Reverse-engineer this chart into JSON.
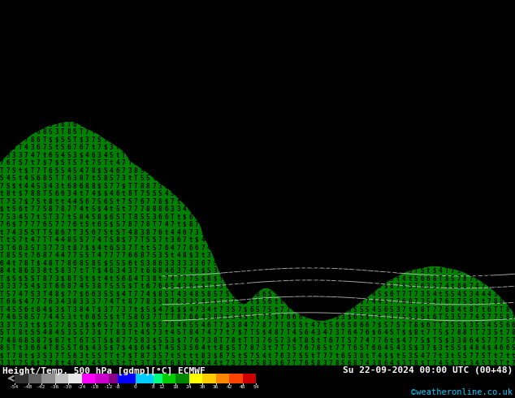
{
  "title_left": "Height/Temp. 500 hPa [gdmp][°C] ECMWF",
  "title_right": "Su 22-09-2024 00:00 UTC (00+48)",
  "credit": "©weatheronline.co.uk",
  "colorbar_ticks": [
    -54,
    -48,
    -42,
    -36,
    -30,
    -24,
    -18,
    -12,
    -8,
    0,
    8,
    12,
    18,
    24,
    30,
    36,
    42,
    48,
    54
  ],
  "colorbar_tick_labels": [
    "-54",
    "-48",
    "-42",
    "-36",
    "-30",
    "-24",
    "-18",
    "-12",
    "-8",
    "0",
    "8",
    "12",
    "18",
    "24",
    "30",
    "36",
    "42",
    "48",
    "54"
  ],
  "color_stops": [
    [
      -54,
      "#303030"
    ],
    [
      -48,
      "#606060"
    ],
    [
      -42,
      "#909090"
    ],
    [
      -36,
      "#c0c0c0"
    ],
    [
      -30,
      "#e8e8e8"
    ],
    [
      -24,
      "#ff00ff"
    ],
    [
      -18,
      "#cc00cc"
    ],
    [
      -12,
      "#880088"
    ],
    [
      -8,
      "#0000ff"
    ],
    [
      0,
      "#00ccff"
    ],
    [
      8,
      "#00ff80"
    ],
    [
      12,
      "#00cc00"
    ],
    [
      18,
      "#008800"
    ],
    [
      24,
      "#ffff00"
    ],
    [
      30,
      "#ffcc00"
    ],
    [
      36,
      "#ff8800"
    ],
    [
      42,
      "#ff4400"
    ],
    [
      48,
      "#cc0000"
    ],
    [
      54,
      "#880000"
    ]
  ],
  "bg_color": "#000000",
  "map_bg_cyan": "#00ffff",
  "land_green": "#008000",
  "text_color": "#ffffff",
  "figsize": [
    6.34,
    4.9
  ],
  "dpi": 100,
  "map_chars": [
    "5",
    "6",
    "7",
    "8",
    "4",
    "3",
    "$",
    "S",
    "s"
  ],
  "land_outline_color": "#aaaaaa",
  "cyan_text_color": "#000000",
  "green_text_color": "#000000"
}
